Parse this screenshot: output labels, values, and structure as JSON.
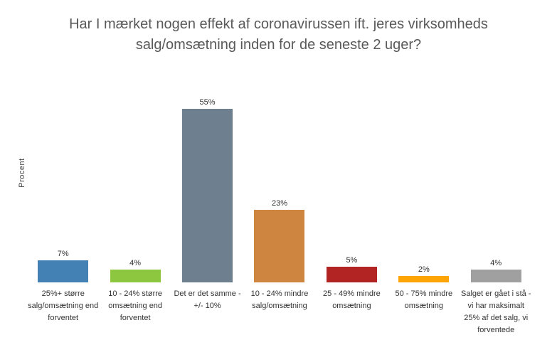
{
  "title": "Har I mærket nogen effekt af coronavirussen ift. jeres virksomheds salg/omsætning inden for de seneste 2 uger?",
  "chart_data": {
    "type": "bar",
    "title": "Har I mærket nogen effekt af coronavirussen ift. jeres virksomheds salg/omsætning inden for de seneste 2 uger?",
    "xlabel": "",
    "ylabel": "Procent",
    "ylim": [
      0,
      60
    ],
    "grid": false,
    "legend": null,
    "unit": "%",
    "categories": [
      "25%+ større salg/omsætning end forventet",
      "10 - 24% større omsætning end forventet",
      "Det er det samme - +/- 10%",
      "10 - 24% mindre salg/omsætning",
      "25 - 49% mindre omsætning",
      "50 - 75% mindre omsætning",
      "Salget er gået i stå - vi har maksimalt 25% af det salg, vi forventede"
    ],
    "values": [
      7,
      4,
      55,
      23,
      5,
      2,
      4
    ],
    "value_labels": [
      "7%",
      "4%",
      "55%",
      "23%",
      "5%",
      "2%",
      "4%"
    ],
    "colors": [
      "#4381B5",
      "#8DC63F",
      "#6E7F8F",
      "#CE8540",
      "#B22323",
      "#FFA405",
      "#A0A0A0"
    ],
    "title_color": "#595959",
    "label_color": "#333333"
  }
}
